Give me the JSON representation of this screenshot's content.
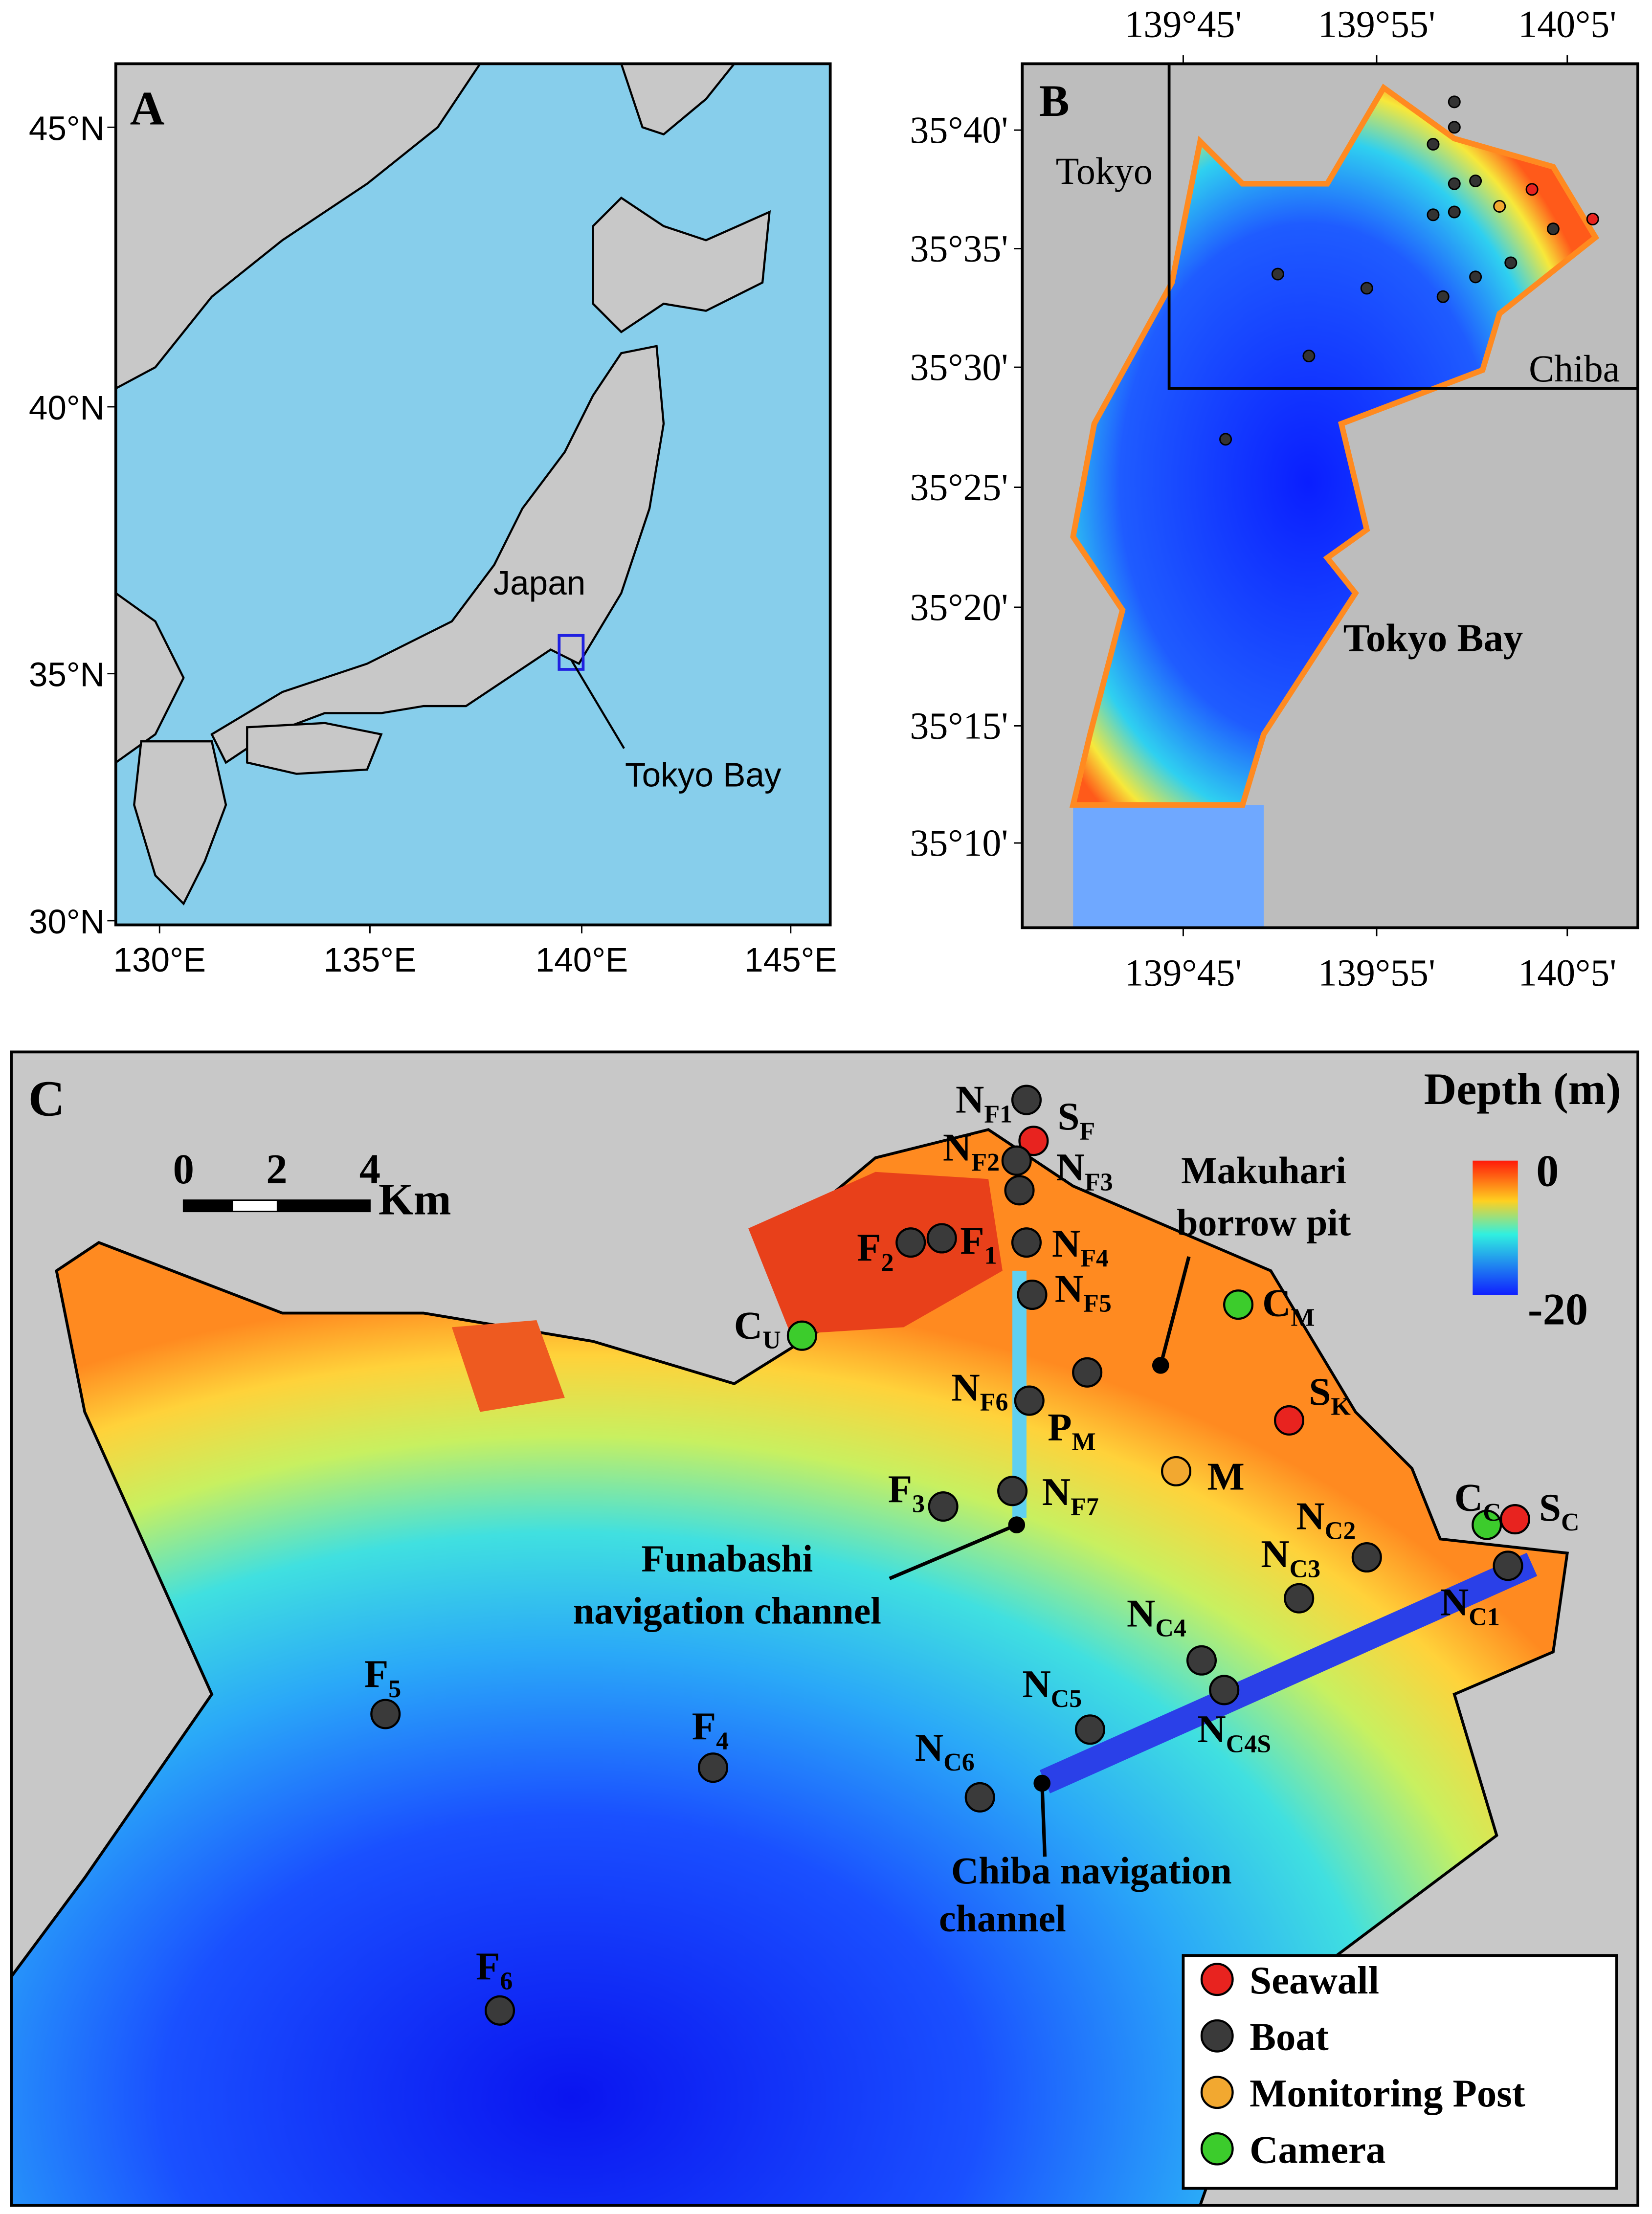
{
  "panel_a": {
    "label": "A",
    "yticks": [
      "45°N",
      "40°N",
      "35°N",
      "30°N"
    ],
    "xticks": [
      "130°E",
      "135°E",
      "140°E",
      "145°E"
    ],
    "place_labels": [
      "Japan",
      "Tokyo Bay"
    ]
  },
  "panel_b": {
    "label": "B",
    "yticks": [
      "35°40'",
      "35°35'",
      "35°30'",
      "35°25'",
      "35°20'",
      "35°15'",
      "35°10'"
    ],
    "xticks_top": [
      "139°45'",
      "139°55'",
      "140°5'"
    ],
    "xticks_bottom": [
      "139°45'",
      "139°55'",
      "140°5'"
    ],
    "place_labels": [
      "Tokyo",
      "Chiba",
      "Tokyo Bay"
    ]
  },
  "panel_c": {
    "label": "C",
    "scale_bar": {
      "ticks": [
        "0",
        "2",
        "4"
      ],
      "unit": "Km"
    },
    "colorbar": {
      "title": "Depth (m)",
      "ticks": [
        "0",
        "-20"
      ]
    },
    "annotations": [
      [
        "Makuhari",
        "borrow pit"
      ],
      [
        "Funabashi",
        "navigation channel"
      ],
      [
        "Chiba navigation",
        "channel"
      ]
    ],
    "stations": [
      {
        "name": "N",
        "sub": "F1",
        "type": "Boat"
      },
      {
        "name": "S",
        "sub": "F",
        "type": "Seawall"
      },
      {
        "name": "N",
        "sub": "F2",
        "type": "Boat"
      },
      {
        "name": "N",
        "sub": "F3",
        "type": "Boat"
      },
      {
        "name": "F",
        "sub": "2",
        "type": "Boat"
      },
      {
        "name": "F",
        "sub": "1",
        "type": "Boat"
      },
      {
        "name": "N",
        "sub": "F4",
        "type": "Boat"
      },
      {
        "name": "N",
        "sub": "F5",
        "type": "Boat"
      },
      {
        "name": "C",
        "sub": "U",
        "type": "Camera"
      },
      {
        "name": "C",
        "sub": "M",
        "type": "Camera"
      },
      {
        "name": "N",
        "sub": "F6",
        "type": "Boat"
      },
      {
        "name": "S",
        "sub": "K",
        "type": "Seawall"
      },
      {
        "name": "M",
        "type": "Monitoring Post"
      },
      {
        "name": "P",
        "sub": "M",
        "type": "Boat"
      },
      {
        "name": "F",
        "sub": "3",
        "type": "Boat"
      },
      {
        "name": "N",
        "sub": "F7",
        "type": "Boat"
      },
      {
        "name": "C",
        "sub": "C",
        "type": "Camera"
      },
      {
        "name": "S",
        "sub": "C",
        "type": "Seawall"
      },
      {
        "name": "N",
        "sub": "C2",
        "type": "Boat"
      },
      {
        "name": "N",
        "sub": "C3",
        "type": "Boat"
      },
      {
        "name": "N",
        "sub": "C1",
        "type": "Boat"
      },
      {
        "name": "N",
        "sub": "C4",
        "type": "Boat"
      },
      {
        "name": "N",
        "sub": "C4S",
        "type": "Boat"
      },
      {
        "name": "N",
        "sub": "C5",
        "type": "Boat"
      },
      {
        "name": "F",
        "sub": "5",
        "type": "Boat"
      },
      {
        "name": "F",
        "sub": "4",
        "type": "Boat"
      },
      {
        "name": "N",
        "sub": "C6",
        "type": "Boat"
      },
      {
        "name": "F",
        "sub": "6",
        "type": "Boat"
      }
    ],
    "legend": [
      {
        "label": "Seawall",
        "color": "#e8231f"
      },
      {
        "label": "Boat",
        "color": "#3a3a3a"
      },
      {
        "label": "Monitoring Post",
        "color": "#f2a830"
      },
      {
        "label": "Camera",
        "color": "#3ccc2c"
      }
    ]
  }
}
